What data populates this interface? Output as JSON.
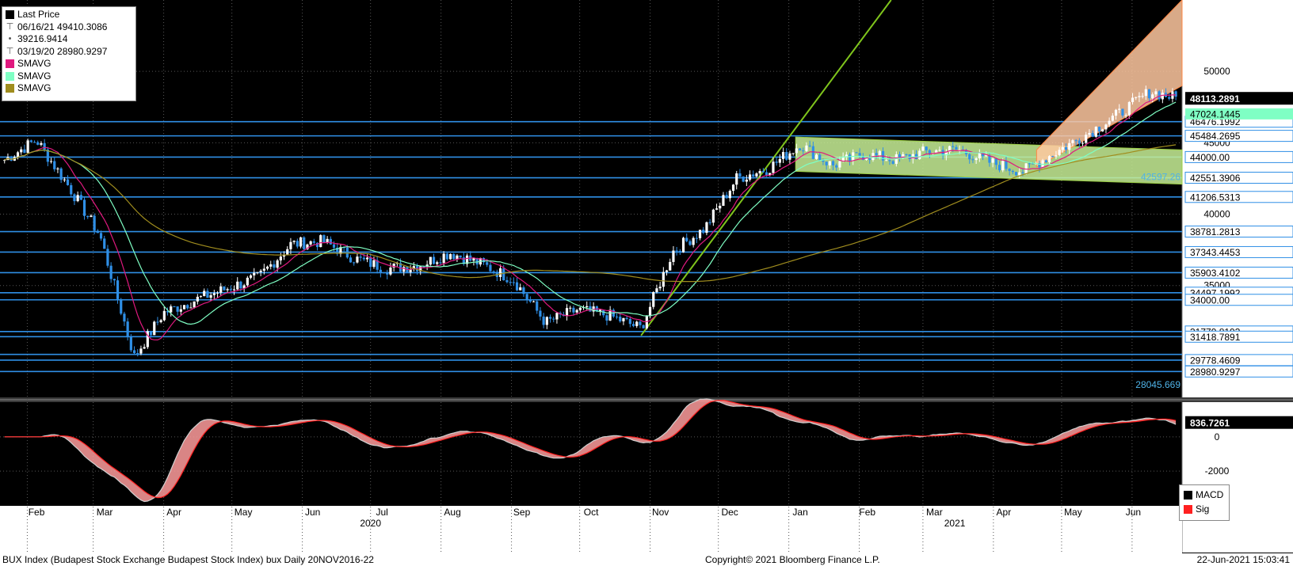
{
  "legend": {
    "items": [
      {
        "label": "Last Price",
        "swatch": "#000000",
        "icon": "square-icon"
      },
      {
        "label": "06/16/21 49410.3086",
        "icon": "high-marker-icon"
      },
      {
        "label": "39216.9414",
        "icon": "average-marker-icon"
      },
      {
        "label": "03/19/20 28980.9297",
        "icon": "low-marker-icon"
      },
      {
        "label": "SMAVG",
        "swatch": "#e0197f"
      },
      {
        "label": "SMAVG",
        "swatch": "#7fffc4"
      },
      {
        "label": "SMAVG",
        "swatch": "#a08d1e"
      }
    ]
  },
  "macd_legend": [
    {
      "label": "MACD",
      "swatch": "#000000"
    },
    {
      "label": "Sig",
      "swatch": "#ff2020"
    }
  ],
  "footer": {
    "left": "BUX Index (Budapest Stock Exchange Budapest Stock Index) bux  Daily 20NOV2016-22",
    "center": "Copyright© 2021 Bloomberg Finance L.P.",
    "right": "22-Jun-2021 15:03:41"
  },
  "colors": {
    "background": "#000000",
    "candle_up": "#ffffff",
    "candle_down": "#2f8fe6",
    "level_line": "#2f8fe6",
    "sma_short": "#e0197f",
    "sma_mid": "#7fffc4",
    "sma_long": "#a08d1e",
    "trendline": "#7fc41c",
    "macd_fill": "#ff9c9c",
    "signal": "#ff2020"
  },
  "chart_data": [
    {
      "type": "line",
      "title": "",
      "series_name": "Last Price",
      "ylim": [
        27000,
        55000
      ],
      "yticks": [
        35000,
        40000,
        45000,
        50000
      ],
      "x_months": [
        "Feb",
        "Mar",
        "Apr",
        "May",
        "Jun",
        "Jul",
        "Aug",
        "Sep",
        "Oct",
        "Nov",
        "Dec",
        "Jan",
        "Feb",
        "Mar",
        "Apr",
        "May",
        "Jun"
      ],
      "x_years": [
        "2020",
        "2021"
      ],
      "x": [
        "2020-01-22",
        "2020-02-05",
        "2020-02-19",
        "2020-03-04",
        "2020-03-19",
        "2020-04-01",
        "2020-04-15",
        "2020-04-29",
        "2020-05-13",
        "2020-05-27",
        "2020-06-10",
        "2020-06-24",
        "2020-07-08",
        "2020-07-22",
        "2020-08-05",
        "2020-08-19",
        "2020-09-02",
        "2020-09-16",
        "2020-09-30",
        "2020-10-14",
        "2020-10-28",
        "2020-11-11",
        "2020-11-25",
        "2020-12-09",
        "2020-12-23",
        "2021-01-06",
        "2021-01-20",
        "2021-02-03",
        "2021-02-17",
        "2021-03-03",
        "2021-03-17",
        "2021-03-31",
        "2021-04-14",
        "2021-04-28",
        "2021-05-12",
        "2021-05-26",
        "2021-06-09",
        "2021-06-21"
      ],
      "values": [
        43800,
        45200,
        42000,
        38500,
        30000,
        33100,
        34000,
        34800,
        35600,
        37900,
        38100,
        36900,
        36200,
        36400,
        37300,
        36500,
        35400,
        32400,
        33300,
        32900,
        32000,
        37400,
        39000,
        42500,
        43200,
        44900,
        43400,
        44200,
        43800,
        44400,
        44500,
        43600,
        43000,
        44300,
        45600,
        47000,
        48600,
        48113
      ],
      "levels": [
        {
          "value": 46476.1992,
          "label": "46476.1992"
        },
        {
          "value": 45484.2695,
          "label": "45484.2695"
        },
        {
          "value": 44000.0,
          "label": "44000.00"
        },
        {
          "value": 42551.3906,
          "label": "42551.3906"
        },
        {
          "value": 41206.5313,
          "label": "41206.5313"
        },
        {
          "value": 38781.2813,
          "label": "38781.2813"
        },
        {
          "value": 37343.4453,
          "label": "37343.4453"
        },
        {
          "value": 35903.4102,
          "label": "35903.4102"
        },
        {
          "value": 34497.1992,
          "label": "34497.1992"
        },
        {
          "value": 34000.0,
          "label": "34000.00"
        },
        {
          "value": 31779.8193,
          "label": "31779.8193"
        },
        {
          "value": 31418.7891,
          "label": "31418.7891"
        },
        {
          "value": 29778.4609,
          "label": "29778.4609"
        },
        {
          "value": 28980.9297,
          "label": "28980.9297"
        }
      ],
      "level_lines_extra": [
        30180
      ],
      "annotations": [
        {
          "value": 42597.26,
          "label": "42597.26"
        },
        {
          "value": 28045.669,
          "label": "28045.669"
        }
      ],
      "last_price": {
        "value": 48113.2891,
        "label": "48113.2891"
      },
      "sma_mid_last": {
        "value": 47024.1445,
        "label": "47024.1445"
      }
    },
    {
      "type": "area",
      "series": [
        {
          "name": "MACD"
        },
        {
          "name": "Sig"
        }
      ],
      "ylim": [
        -4300,
        1700
      ],
      "yticks": [
        -2000,
        0
      ],
      "last": {
        "value": 836.7261,
        "label": "836.7261"
      }
    }
  ]
}
